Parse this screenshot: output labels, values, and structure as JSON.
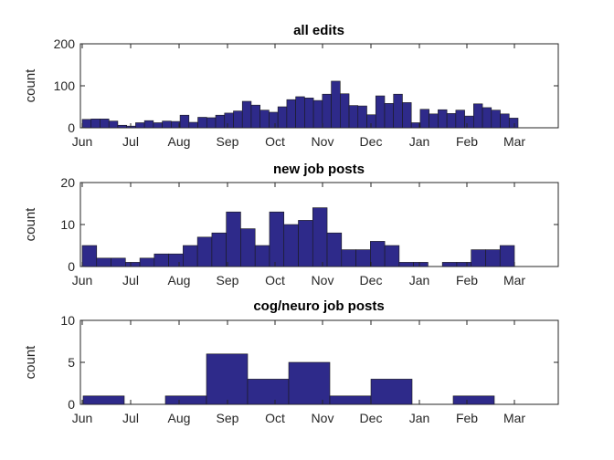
{
  "chart_data": [
    {
      "type": "bar",
      "title": "all edits",
      "xlabel": "",
      "ylabel": "count",
      "ylim": [
        0,
        200
      ],
      "yticks": [
        0,
        100,
        200
      ],
      "xticks": [
        "Jun",
        "Jul",
        "Aug",
        "Sep",
        "Oct",
        "Nov",
        "Dec",
        "Jan",
        "Feb",
        "Mar"
      ],
      "values": [
        20,
        21,
        21,
        16,
        6,
        4,
        12,
        17,
        12,
        16,
        15,
        30,
        13,
        25,
        24,
        30,
        35,
        40,
        63,
        54,
        42,
        37,
        50,
        67,
        74,
        71,
        65,
        80,
        111,
        81,
        53,
        52,
        31,
        76,
        58,
        80,
        60,
        12,
        44,
        33,
        43,
        34,
        42,
        28,
        57,
        48,
        42,
        33,
        23
      ],
      "color": "#2e2a8a"
    },
    {
      "type": "bar",
      "title": "new job posts",
      "xlabel": "",
      "ylabel": "count",
      "ylim": [
        0,
        20
      ],
      "yticks": [
        0,
        10,
        20
      ],
      "xticks": [
        "Jun",
        "Jul",
        "Aug",
        "Sep",
        "Oct",
        "Nov",
        "Dec",
        "Jan",
        "Feb",
        "Mar"
      ],
      "values": [
        5,
        2,
        2,
        1,
        2,
        3,
        3,
        5,
        7,
        8,
        13,
        9,
        5,
        13,
        10,
        11,
        14,
        8,
        4,
        4,
        6,
        5,
        1,
        1,
        0,
        1,
        1,
        4,
        4,
        5
      ],
      "color": "#2e2a8a"
    },
    {
      "type": "bar",
      "title": "cog/neuro job posts",
      "xlabel": "",
      "ylabel": "count",
      "ylim": [
        0,
        10
      ],
      "yticks": [
        0,
        5,
        10
      ],
      "xticks": [
        "Jun",
        "Jul",
        "Aug",
        "Sep",
        "Oct",
        "Nov",
        "Dec",
        "Jan",
        "Feb",
        "Mar"
      ],
      "values": [
        1,
        0,
        1,
        6,
        3,
        5,
        1,
        3,
        0,
        1
      ],
      "color": "#2e2a8a"
    }
  ]
}
